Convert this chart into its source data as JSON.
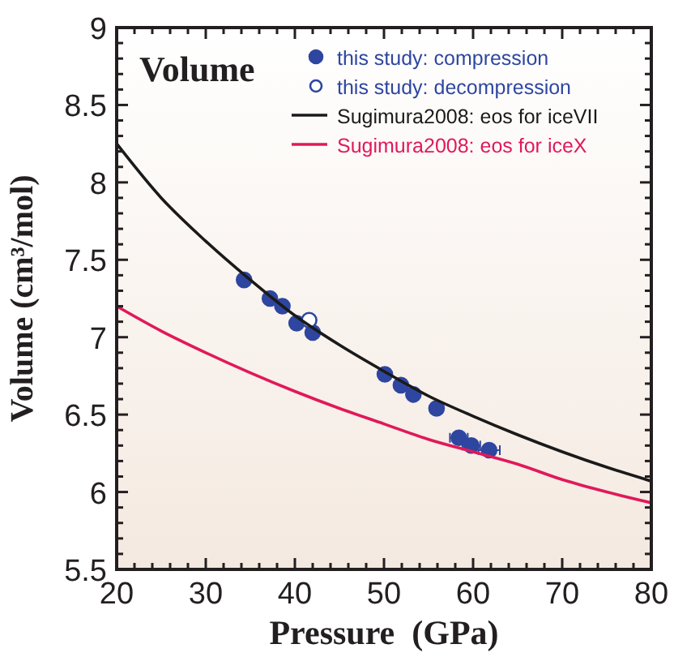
{
  "chart_data": {
    "type": "scatter",
    "title": "Volume",
    "xlabel": "Pressure  (GPa)",
    "ylabel": "Volume (cm³/mol)",
    "xlim": [
      20,
      80
    ],
    "ylim": [
      5.5,
      9
    ],
    "xticks": [
      20,
      {
        "value": 22,
        "label": null
      },
      {
        "value": 24,
        "label": null
      },
      {
        "value": 26,
        "label": null
      },
      {
        "value": 28,
        "label": null
      },
      30,
      {
        "value": 32,
        "label": null
      },
      {
        "value": 34,
        "label": null
      },
      {
        "value": 36,
        "label": null
      },
      {
        "value": 38,
        "label": null
      },
      40,
      {
        "value": 42,
        "label": null
      },
      {
        "value": 44,
        "label": null
      },
      {
        "value": 46,
        "label": null
      },
      {
        "value": 48,
        "label": null
      },
      50,
      {
        "value": 52,
        "label": null
      },
      {
        "value": 54,
        "label": null
      },
      {
        "value": 56,
        "label": null
      },
      {
        "value": 58,
        "label": null
      },
      60,
      {
        "value": 62,
        "label": null
      },
      {
        "value": 64,
        "label": null
      },
      {
        "value": 66,
        "label": null
      },
      {
        "value": 68,
        "label": null
      },
      70,
      {
        "value": 72,
        "label": null
      },
      {
        "value": 74,
        "label": null
      },
      {
        "value": 76,
        "label": null
      },
      {
        "value": 78,
        "label": null
      },
      80
    ],
    "yticks": [
      5.5,
      {
        "value": 5.6,
        "label": null
      },
      {
        "value": 5.7,
        "label": null
      },
      {
        "value": 5.8,
        "label": null
      },
      {
        "value": 5.9,
        "label": null
      },
      6,
      {
        "value": 6.1,
        "label": null
      },
      {
        "value": 6.2,
        "label": null
      },
      {
        "value": 6.3,
        "label": null
      },
      {
        "value": 6.4,
        "label": null
      },
      6.5,
      {
        "value": 6.6,
        "label": null
      },
      {
        "value": 6.7,
        "label": null
      },
      {
        "value": 6.8,
        "label": null
      },
      {
        "value": 6.9,
        "label": null
      },
      7,
      {
        "value": 7.1,
        "label": null
      },
      {
        "value": 7.2,
        "label": null
      },
      {
        "value": 7.3,
        "label": null
      },
      {
        "value": 7.4,
        "label": null
      },
      7.5,
      {
        "value": 7.6,
        "label": null
      },
      {
        "value": 7.7,
        "label": null
      },
      {
        "value": 7.8,
        "label": null
      },
      {
        "value": 7.9,
        "label": null
      },
      8,
      {
        "value": 8.1,
        "label": null
      },
      {
        "value": 8.2,
        "label": null
      },
      {
        "value": 8.3,
        "label": null
      },
      {
        "value": 8.4,
        "label": null
      },
      8.5,
      {
        "value": 8.6,
        "label": null
      },
      {
        "value": 8.7,
        "label": null
      },
      {
        "value": 8.8,
        "label": null
      },
      {
        "value": 8.9,
        "label": null
      },
      9
    ],
    "legend": "top right",
    "marker": "circle",
    "grid": false,
    "series": [
      {
        "name": "this study: compression",
        "color": "#2e46a0",
        "x": [
          34.3,
          37.2,
          38.6,
          40.2,
          42.0,
          50.1,
          51.9,
          53.3,
          55.9,
          58.4,
          59.8,
          61.8
        ],
        "values": [
          7.37,
          7.25,
          7.2,
          7.09,
          7.03,
          6.76,
          6.69,
          6.63,
          6.54,
          6.35,
          6.3,
          6.27
        ],
        "xerrors": [
          null,
          null,
          null,
          null,
          null,
          null,
          null,
          null,
          null,
          1,
          1,
          1.2
        ]
      },
      {
        "name": "this study: decompression",
        "color": "#2e46a0",
        "colors": [
          "#ffffff"
        ],
        "x": [
          41.6
        ],
        "values": [
          7.11
        ]
      },
      {
        "name": "Sugimura2008: eos for iceVII",
        "type": "line",
        "marker": "none",
        "color": "#1a1a1a",
        "x": [
          20,
          25,
          30,
          35,
          40,
          45,
          50,
          55,
          60,
          65,
          70,
          75,
          80
        ],
        "values": [
          8.25,
          7.9,
          7.62,
          7.37,
          7.14,
          6.95,
          6.78,
          6.62,
          6.49,
          6.37,
          6.26,
          6.16,
          6.07
        ]
      },
      {
        "name": "Sugimura2008: eos for iceX",
        "type": "line",
        "marker": "none",
        "color": "#e0195a",
        "x": [
          20,
          25,
          30,
          35,
          40,
          45,
          50,
          55,
          60,
          65,
          70,
          75,
          80
        ],
        "values": [
          7.2,
          7.04,
          6.9,
          6.77,
          6.65,
          6.54,
          6.44,
          6.34,
          6.26,
          6.18,
          6.08,
          6,
          5.93
        ]
      }
    ]
  }
}
